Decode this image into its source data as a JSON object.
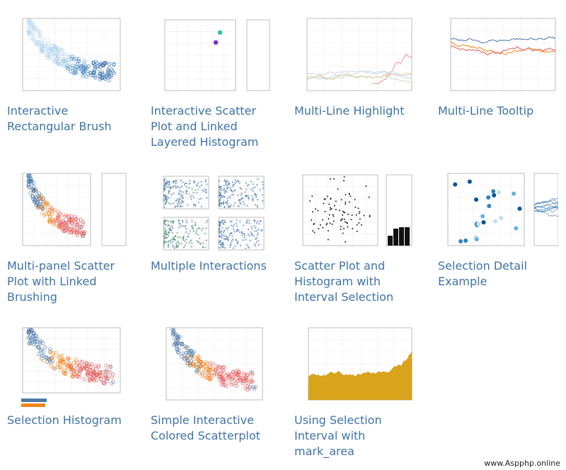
{
  "gallery": {
    "items": [
      {
        "caption_lines": [
          "Interactive",
          "Rectangular Brush"
        ]
      },
      {
        "caption_lines": [
          "Interactive Scatter",
          "Plot and Linked",
          "Layered Histogram"
        ]
      },
      {
        "caption_lines": [
          "Multi-Line Highlight"
        ]
      },
      {
        "caption_lines": [
          "Multi-Line Tooltip"
        ]
      },
      {
        "caption_lines": [
          "Multi-panel Scatter",
          "Plot with Linked",
          "Brushing"
        ]
      },
      {
        "caption_lines": [
          "Multiple Interactions"
        ]
      },
      {
        "caption_lines": [
          "Scatter Plot and",
          "Histogram with",
          "Interval Selection"
        ]
      },
      {
        "caption_lines": [
          "Selection Detail",
          "Example"
        ]
      },
      {
        "caption_lines": [
          "Selection Histogram"
        ]
      },
      {
        "caption_lines": [
          "Simple Interactive",
          "Colored Scatterplot"
        ]
      },
      {
        "caption_lines": [
          "Using Selection",
          "Interval with",
          "mark_area"
        ]
      }
    ],
    "watermark": "www.Aspphp.online"
  }
}
